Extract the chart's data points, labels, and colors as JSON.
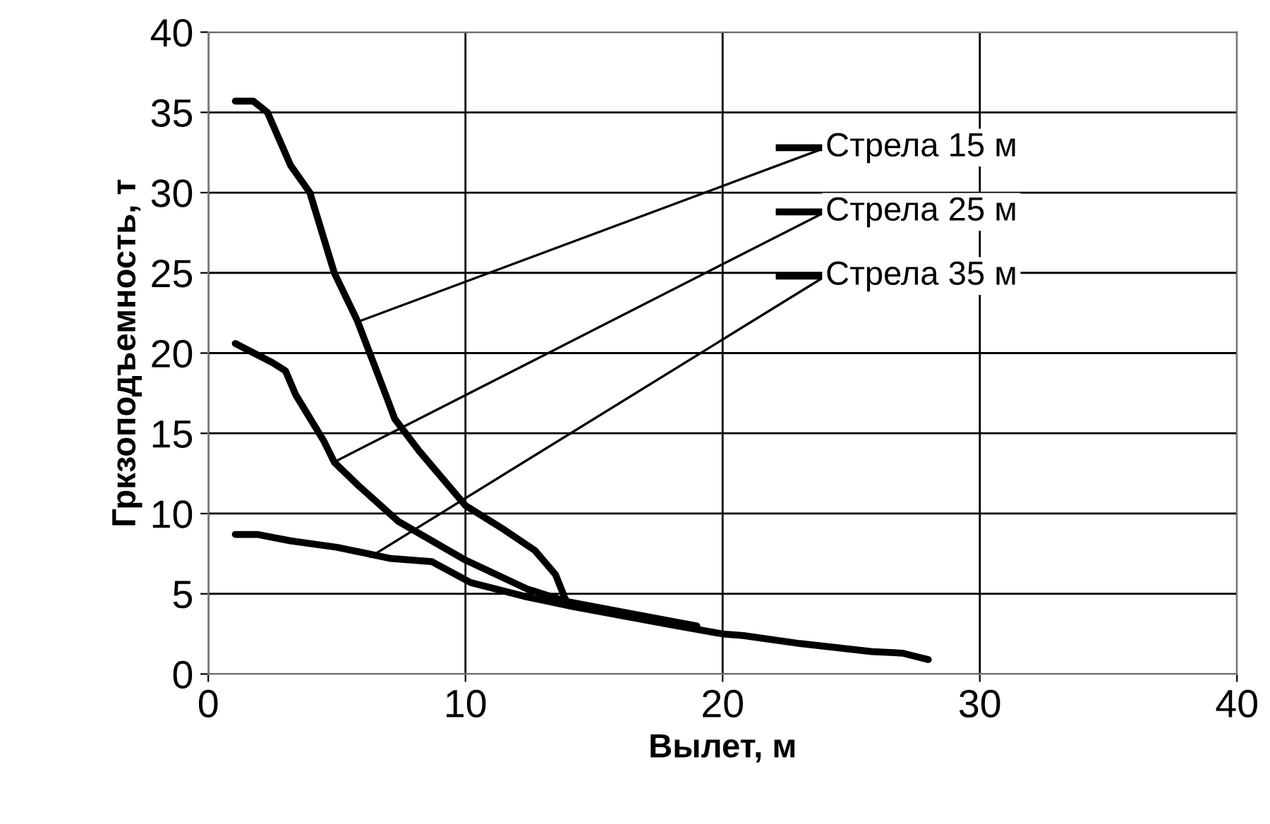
{
  "chart_data": {
    "type": "line",
    "xlabel": "Вылет, м",
    "ylabel": "Гркзоподъемность, т",
    "xlim": [
      0,
      40
    ],
    "ylim": [
      0,
      40
    ],
    "xticks": [
      0,
      10,
      20,
      30,
      40
    ],
    "yticks": [
      0,
      5,
      10,
      15,
      20,
      25,
      30,
      35,
      40
    ],
    "grid": true,
    "line_style": "solid",
    "marker": "none",
    "series": [
      {
        "color": "#000000",
        "x": [
          1.05,
          1.75,
          2.3,
          3.2,
          3.95,
          4.9,
          5.8,
          6.9,
          7.25,
          8.2,
          10,
          11.5,
          12.7,
          13.5,
          13.85,
          14
        ],
        "values": [
          35.7,
          35.7,
          35,
          31.7,
          30,
          25,
          22,
          17.4,
          15.9,
          13.9,
          10.5,
          9.0,
          7.7,
          6.2,
          4.8,
          4.3
        ]
      },
      {
        "color": "#000000",
        "x": [
          1.05,
          2.5,
          3,
          3.4,
          4.5,
          4.9,
          5.8,
          7.4,
          10,
          12.4,
          14,
          16,
          19
        ],
        "values": [
          20.6,
          19.4,
          18.9,
          17.4,
          14.5,
          13.2,
          11.8,
          9.5,
          7.1,
          5.3,
          4.5,
          3.9,
          3.0
        ]
      },
      {
        "color": "#000000",
        "x": [
          1.05,
          1.9,
          3.2,
          5,
          7.1,
          8.7,
          10.2,
          12.4,
          14.2,
          17.9,
          20,
          20.8,
          23,
          25.8,
          27,
          28
        ],
        "values": [
          8.7,
          8.7,
          8.3,
          7.9,
          7.2,
          7.0,
          5.7,
          4.8,
          4.2,
          3.1,
          2.5,
          2.4,
          1.9,
          1.4,
          1.3,
          0.9
        ]
      }
    ],
    "annotations": [
      {
        "text": "Стрела 15 м",
        "x": 5.9,
        "y": 22
      },
      {
        "text": "Стрела 25 м",
        "x": 5,
        "y": 13.3
      },
      {
        "text": "Стрела 35 м",
        "x": 6.3,
        "y": 7.3
      }
    ]
  }
}
